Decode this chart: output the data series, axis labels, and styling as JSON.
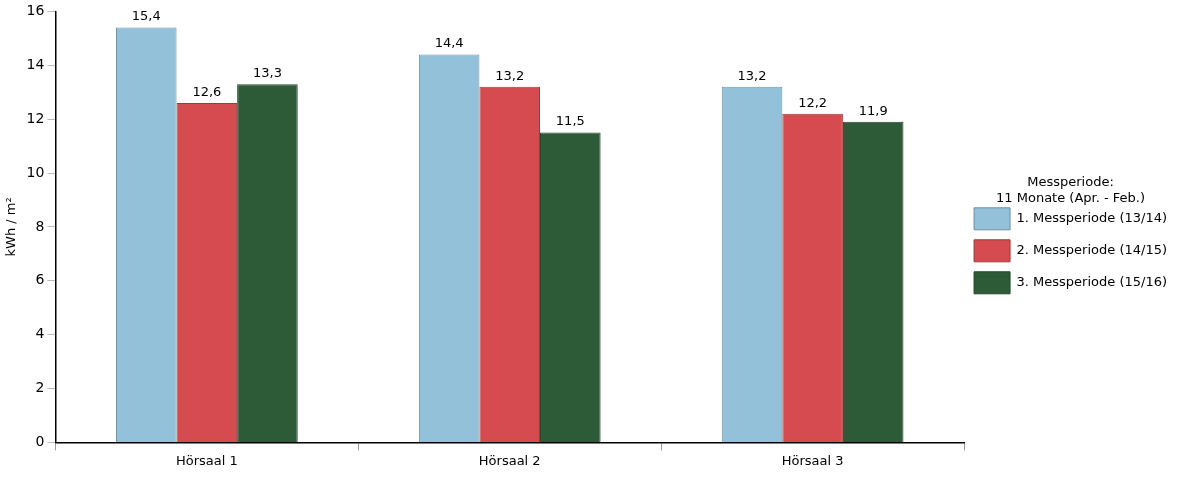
{
  "chart_data": {
    "type": "bar",
    "ylabel": "kWh / m²",
    "legend_title": "Messperiode:\n11 Monate (Apr. - Feb.)",
    "categories": [
      "Hörsaal 1",
      "Hörsaal 2",
      "Hörsaal 3"
    ],
    "series": [
      {
        "name": "1. Messperiode (13/14)",
        "color": "#92c1d9",
        "values": [
          15.4,
          14.4,
          13.2
        ],
        "value_labels": [
          "15,4",
          "14,4",
          "13,2"
        ]
      },
      {
        "name": "2. Messperiode (14/15)",
        "color": "#d64b4f",
        "values": [
          12.6,
          13.2,
          12.2
        ],
        "value_labels": [
          "12,6",
          "13,2",
          "12,2"
        ]
      },
      {
        "name": "3. Messperiode (15/16)",
        "color": "#2e5b37",
        "values": [
          13.3,
          11.5,
          11.9
        ],
        "value_labels": [
          "13,3",
          "11,5",
          "11,9"
        ]
      }
    ],
    "ylim": [
      0,
      16
    ],
    "yticks": [
      0,
      2,
      4,
      6,
      8,
      10,
      12,
      14,
      16
    ],
    "grid": false,
    "legend": "right"
  }
}
